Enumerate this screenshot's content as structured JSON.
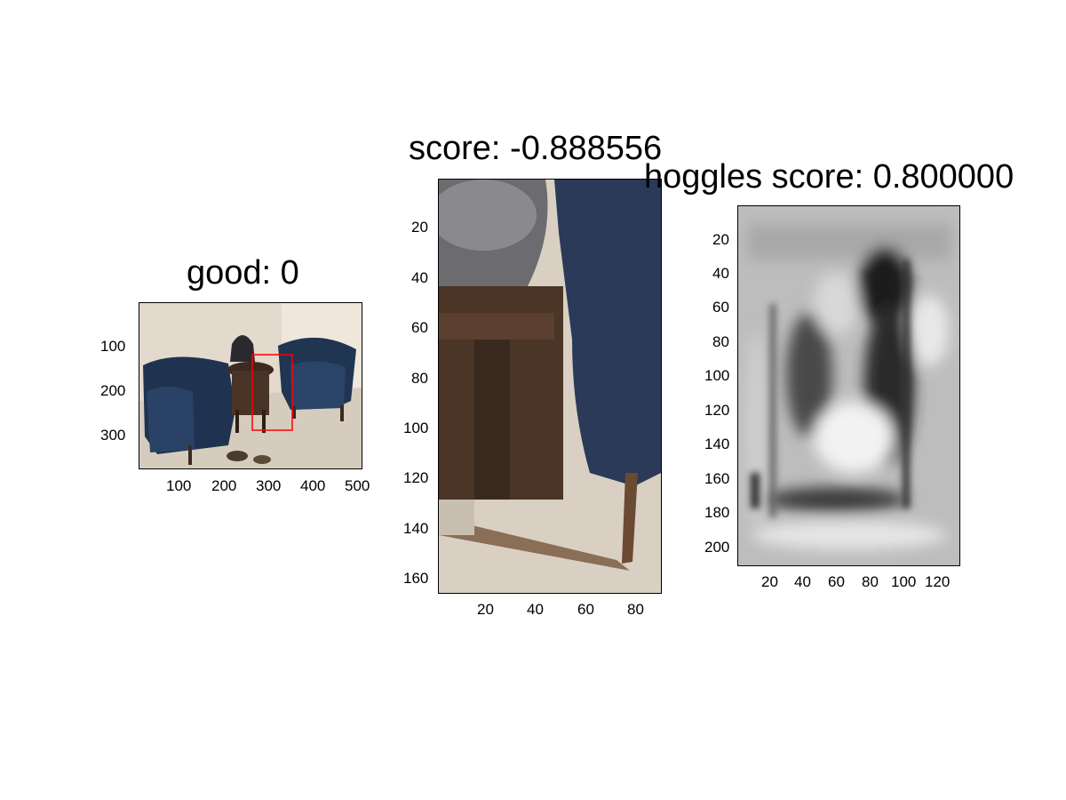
{
  "panels": [
    {
      "title": "good: 0",
      "xticks": [
        "100",
        "200",
        "300",
        "400",
        "500"
      ],
      "yticks": [
        "100",
        "200",
        "300"
      ]
    },
    {
      "title": "score: -0.888556",
      "xticks": [
        "20",
        "40",
        "60",
        "80"
      ],
      "yticks": [
        "20",
        "40",
        "60",
        "80",
        "100",
        "120",
        "140",
        "160"
      ]
    },
    {
      "title": "hoggles score: 0.800000",
      "xticks": [
        "20",
        "40",
        "60",
        "80",
        "100",
        "120"
      ],
      "yticks": [
        "20",
        "40",
        "60",
        "80",
        "100",
        "120",
        "140",
        "160",
        "180",
        "200"
      ]
    }
  ],
  "colors": {
    "bounding_box": "#ff0000",
    "chair": "#1f3552",
    "floor": "#d8cfc2",
    "wall": "#e6ddd2"
  }
}
